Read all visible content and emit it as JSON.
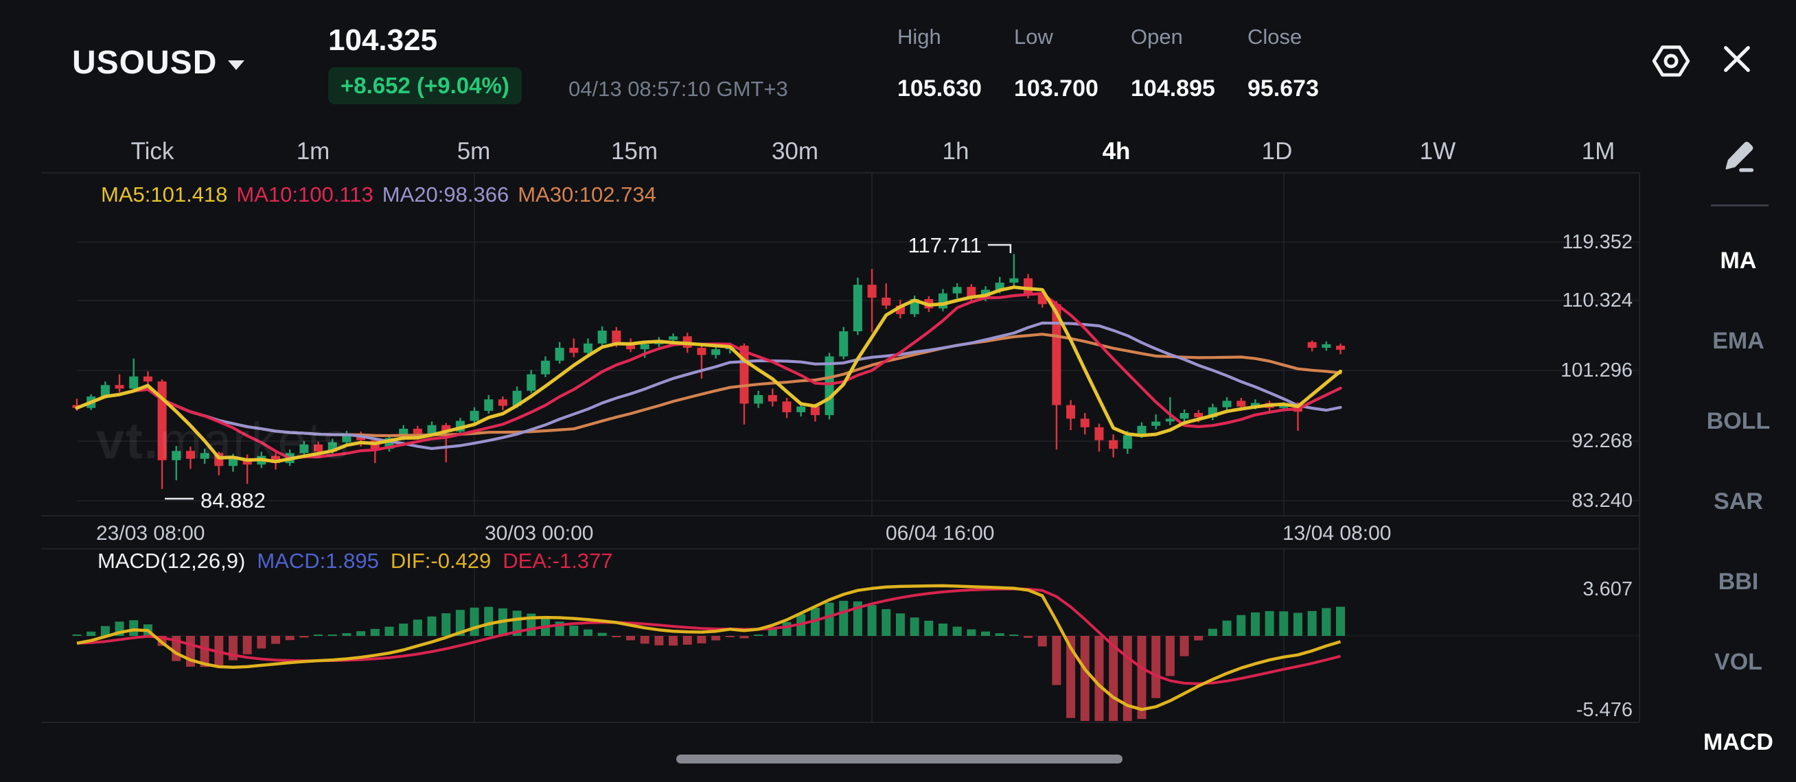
{
  "header": {
    "symbol": "USOUSD",
    "price": "104.325",
    "change": "+8.652 (+9.04%)",
    "timestamp": "04/13 08:57:10 GMT+3",
    "stats": [
      {
        "label": "High",
        "value": "105.630"
      },
      {
        "label": "Low",
        "value": "103.700"
      },
      {
        "label": "Open",
        "value": "104.895"
      },
      {
        "label": "Close",
        "value": "95.673"
      }
    ]
  },
  "timeframes": {
    "items": [
      "Tick",
      "1m",
      "5m",
      "15m",
      "30m",
      "1h",
      "4h",
      "1D",
      "1W",
      "1M"
    ],
    "active": "4h"
  },
  "ma_legend": [
    {
      "label": "MA5:101.418",
      "color": "#e6c32e"
    },
    {
      "label": "MA10:100.113",
      "color": "#e02752"
    },
    {
      "label": "MA20:98.366",
      "color": "#9a93cf"
    },
    {
      "label": "MA30:102.734",
      "color": "#d4824f"
    }
  ],
  "macd_legend": [
    {
      "label": "MACD(12,26,9)",
      "color": "#f2f3f6"
    },
    {
      "label": "MACD:1.895",
      "color": "#4f63cf"
    },
    {
      "label": "DIF:-0.429",
      "color": "#e0b31e"
    },
    {
      "label": "DEA:-1.377",
      "color": "#dc2348"
    }
  ],
  "price_axis": [
    "119.352",
    "110.324",
    "101.296",
    "92.268",
    "83.240"
  ],
  "time_axis": [
    "23/03 08:00",
    "30/03 00:00",
    "06/04 16:00",
    "13/04 08:00"
  ],
  "macd_axis": [
    "3.607",
    "-5.476"
  ],
  "annotations": {
    "high": "117.711",
    "low": "84.882"
  },
  "watermark": {
    "bold": "vt.",
    "light": "markets"
  },
  "sidebar": {
    "items": [
      "MA",
      "EMA",
      "BOLL",
      "SAR",
      "BBI",
      "VOL",
      "MACD"
    ],
    "active": [
      "MA",
      "MACD"
    ]
  },
  "colors": {
    "up": "#21a069",
    "down": "#e03340",
    "macd_up": "#1d8a55",
    "macd_down": "#a63340",
    "ma5": "#e6c32e",
    "ma10": "#e02752",
    "ma20": "#9a93cf",
    "ma30": "#d4824f",
    "dif": "#e0b31e",
    "dea": "#d8234e",
    "grid": "#212329",
    "border": "#26282d",
    "annotation": "#e8eaee"
  },
  "chart_data": {
    "type": "candlestick+macd",
    "symbol": "USOUSD",
    "interval": "4h",
    "title": "USOUSD 4h candlestick chart with MA(5,10,20,30) overlay and MACD(12,26,9) subchart",
    "price_axis_ticks": [
      119.352,
      110.324,
      101.296,
      92.268,
      83.24
    ],
    "macd_axis_ticks": [
      3.607,
      -5.476
    ],
    "x_labels": [
      "23/03 08:00",
      "30/03 00:00",
      "06/04 16:00",
      "13/04 08:00"
    ],
    "ma_periods": [
      5,
      10,
      20,
      30
    ],
    "ma_values": {
      "MA5": 101.418,
      "MA10": 100.113,
      "MA20": 98.366,
      "MA30": 102.734
    },
    "macd_params": [
      12,
      26,
      9
    ],
    "macd_values": {
      "MACD": 1.895,
      "DIF": -0.429,
      "DEA": -1.377
    },
    "marked_high": 117.711,
    "marked_low": 84.882,
    "quote": {
      "last": 104.325,
      "change": 8.652,
      "change_pct": 9.04,
      "high": 105.63,
      "low": 103.7,
      "open": 104.895,
      "prev_close": 95.673
    },
    "candles": [
      [
        96.6,
        97.5,
        95.8,
        96.2
      ],
      [
        96.2,
        98.1,
        95.9,
        97.8
      ],
      [
        97.8,
        99.9,
        97.5,
        99.4
      ],
      [
        99.4,
        100.9,
        98.4,
        98.9
      ],
      [
        98.9,
        103.1,
        98.6,
        100.6
      ],
      [
        100.6,
        101.3,
        99.5,
        99.9
      ],
      [
        99.9,
        100.2,
        84.882,
        88.9
      ],
      [
        88.9,
        90.9,
        86.1,
        90.2
      ],
      [
        90.2,
        90.8,
        87.7,
        89.1
      ],
      [
        89.1,
        90.5,
        88.4,
        89.9
      ],
      [
        89.9,
        90.1,
        86.8,
        88.1
      ],
      [
        88.1,
        89.8,
        87.3,
        89.2
      ],
      [
        89.2,
        89.7,
        85.6,
        88.3
      ],
      [
        88.3,
        90.1,
        87.8,
        89.5
      ],
      [
        89.5,
        89.9,
        87.6,
        88.5
      ],
      [
        88.5,
        90.4,
        88.1,
        89.9
      ],
      [
        89.9,
        91.6,
        89.5,
        91.1
      ],
      [
        91.1,
        91.5,
        89.4,
        90.1
      ],
      [
        90.1,
        91.9,
        89.8,
        91.4
      ],
      [
        91.4,
        93.0,
        91.1,
        92.5
      ],
      [
        92.5,
        92.9,
        90.8,
        91.7
      ],
      [
        91.7,
        92.1,
        88.5,
        90.5
      ],
      [
        90.5,
        92.4,
        90.1,
        92.0
      ],
      [
        92.0,
        93.8,
        91.7,
        93.3
      ],
      [
        93.3,
        93.7,
        92.1,
        92.6
      ],
      [
        92.6,
        94.3,
        92.3,
        93.8
      ],
      [
        93.8,
        94.1,
        88.6,
        92.9
      ],
      [
        92.9,
        94.8,
        92.5,
        94.4
      ],
      [
        94.4,
        96.3,
        94.0,
        95.8
      ],
      [
        95.8,
        98.0,
        95.4,
        97.4
      ],
      [
        97.4,
        97.8,
        95.9,
        96.5
      ],
      [
        96.5,
        99.2,
        96.2,
        98.6
      ],
      [
        98.6,
        101.5,
        98.3,
        100.9
      ],
      [
        100.9,
        103.4,
        100.5,
        102.8
      ],
      [
        102.8,
        105.4,
        102.4,
        104.6
      ],
      [
        104.6,
        105.9,
        103.3,
        103.9
      ],
      [
        103.9,
        105.9,
        103.5,
        105.2
      ],
      [
        105.2,
        107.6,
        104.8,
        107.0
      ],
      [
        107.0,
        107.5,
        104.7,
        105.2
      ],
      [
        105.2,
        105.9,
        104.0,
        104.4
      ],
      [
        104.4,
        105.6,
        103.2,
        105.1
      ],
      [
        105.1,
        106.1,
        104.7,
        105.7
      ],
      [
        105.7,
        106.6,
        105.0,
        106.2
      ],
      [
        106.2,
        106.7,
        103.9,
        104.6
      ],
      [
        104.6,
        105.2,
        100.3,
        103.6
      ],
      [
        103.6,
        104.9,
        103.1,
        104.4
      ],
      [
        104.4,
        105.3,
        103.8,
        104.9
      ],
      [
        104.9,
        105.2,
        93.9,
        96.8
      ],
      [
        96.8,
        98.6,
        96.2,
        98.0
      ],
      [
        98.0,
        98.9,
        96.4,
        97.1
      ],
      [
        97.1,
        97.6,
        94.8,
        95.6
      ],
      [
        95.6,
        97.0,
        95.0,
        96.4
      ],
      [
        96.4,
        96.8,
        94.3,
        95.2
      ],
      [
        95.2,
        103.9,
        94.6,
        103.4
      ],
      [
        103.4,
        107.5,
        103.0,
        106.9
      ],
      [
        106.9,
        114.4,
        106.4,
        113.4
      ],
      [
        113.4,
        115.6,
        106.8,
        111.6
      ],
      [
        111.6,
        113.6,
        110.0,
        110.5
      ],
      [
        110.5,
        111.3,
        108.7,
        109.3
      ],
      [
        109.3,
        111.9,
        108.9,
        111.4
      ],
      [
        111.4,
        111.8,
        109.6,
        110.1
      ],
      [
        110.1,
        112.8,
        109.7,
        112.2
      ],
      [
        112.2,
        113.6,
        111.5,
        113.1
      ],
      [
        113.1,
        113.5,
        111.0,
        111.5
      ],
      [
        111.5,
        113.2,
        111.1,
        112.7
      ],
      [
        112.7,
        114.5,
        112.2,
        113.7
      ],
      [
        113.7,
        117.711,
        113.2,
        114.3
      ],
      [
        114.3,
        114.9,
        111.5,
        112.1
      ],
      [
        112.1,
        112.7,
        110.2,
        110.7
      ],
      [
        110.7,
        111.1,
        90.4,
        96.6
      ],
      [
        96.6,
        97.3,
        93.1,
        94.7
      ],
      [
        94.7,
        95.5,
        92.5,
        93.5
      ],
      [
        93.5,
        94.0,
        90.1,
        91.7
      ],
      [
        91.7,
        92.5,
        89.3,
        90.5
      ],
      [
        90.5,
        93.0,
        89.8,
        92.4
      ],
      [
        92.4,
        94.2,
        92.0,
        93.7
      ],
      [
        93.7,
        95.3,
        93.2,
        94.3
      ],
      [
        94.3,
        97.7,
        93.8,
        94.7
      ],
      [
        94.7,
        96.0,
        94.1,
        95.5
      ],
      [
        95.5,
        95.9,
        94.2,
        94.9
      ],
      [
        94.9,
        96.8,
        94.5,
        96.3
      ],
      [
        96.3,
        97.7,
        95.9,
        97.2
      ],
      [
        97.2,
        97.6,
        95.8,
        96.4
      ],
      [
        96.4,
        97.4,
        96.0,
        96.9
      ],
      [
        96.9,
        97.2,
        95.6,
        96.2
      ],
      [
        96.2,
        97.0,
        95.8,
        96.9
      ],
      [
        96.9,
        97.0,
        93.0,
        95.673
      ],
      [
        105.4,
        105.63,
        104.1,
        104.6
      ],
      [
        104.6,
        105.5,
        104.2,
        105.1
      ],
      [
        104.895,
        105.2,
        103.7,
        104.325
      ]
    ],
    "macd_dif": [
      -0.55,
      -0.35,
      -0.05,
      0.25,
      0.45,
      0.4,
      -0.5,
      -1.3,
      -1.8,
      -2.1,
      -2.3,
      -2.35,
      -2.3,
      -2.2,
      -2.1,
      -2.0,
      -1.92,
      -1.85,
      -1.8,
      -1.72,
      -1.6,
      -1.45,
      -1.28,
      -1.05,
      -0.75,
      -0.45,
      -0.12,
      0.25,
      0.6,
      0.9,
      1.1,
      1.25,
      1.35,
      1.38,
      1.36,
      1.3,
      1.22,
      1.12,
      1.0,
      0.8,
      0.6,
      0.45,
      0.35,
      0.3,
      0.28,
      0.35,
      0.5,
      0.4,
      0.5,
      0.8,
      1.2,
      1.7,
      2.2,
      2.7,
      3.1,
      3.4,
      3.55,
      3.65,
      3.7,
      3.72,
      3.74,
      3.75,
      3.72,
      3.68,
      3.64,
      3.6,
      3.56,
      3.42,
      3.0,
      1.1,
      -0.9,
      -2.5,
      -3.7,
      -4.6,
      -5.2,
      -5.5,
      -5.3,
      -4.85,
      -4.3,
      -3.75,
      -3.25,
      -2.8,
      -2.4,
      -2.08,
      -1.8,
      -1.58,
      -1.42,
      -1.12,
      -0.75,
      -0.429
    ]
  }
}
